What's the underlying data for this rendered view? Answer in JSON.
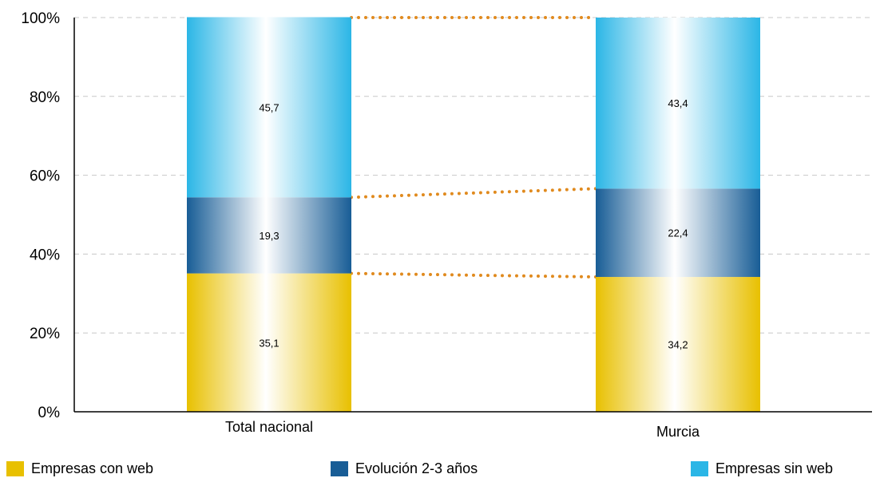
{
  "chart_data": {
    "type": "bar",
    "stacked": true,
    "percent": true,
    "categories": [
      "Total nacional",
      "Murcia"
    ],
    "series": [
      {
        "name": "Empresas con web",
        "values": [
          35.1,
          34.2
        ],
        "labels": [
          "35,1",
          "34,2"
        ],
        "color": "#E8C000"
      },
      {
        "name": "Evolución 2-3 años",
        "values": [
          19.3,
          22.4
        ],
        "labels": [
          "19,3",
          "22,4"
        ],
        "color": "#185D96"
      },
      {
        "name": "Empresas sin web",
        "values": [
          45.7,
          43.4
        ],
        "labels": [
          "45,7",
          "43,4"
        ],
        "color": "#2BB6E6"
      }
    ],
    "y_ticks": [
      "0%",
      "20%",
      "40%",
      "60%",
      "80%",
      "100%"
    ],
    "ylim": [
      0,
      100
    ],
    "grid": true,
    "legend_position": "bottom",
    "connector_color": "#E08A1E"
  }
}
